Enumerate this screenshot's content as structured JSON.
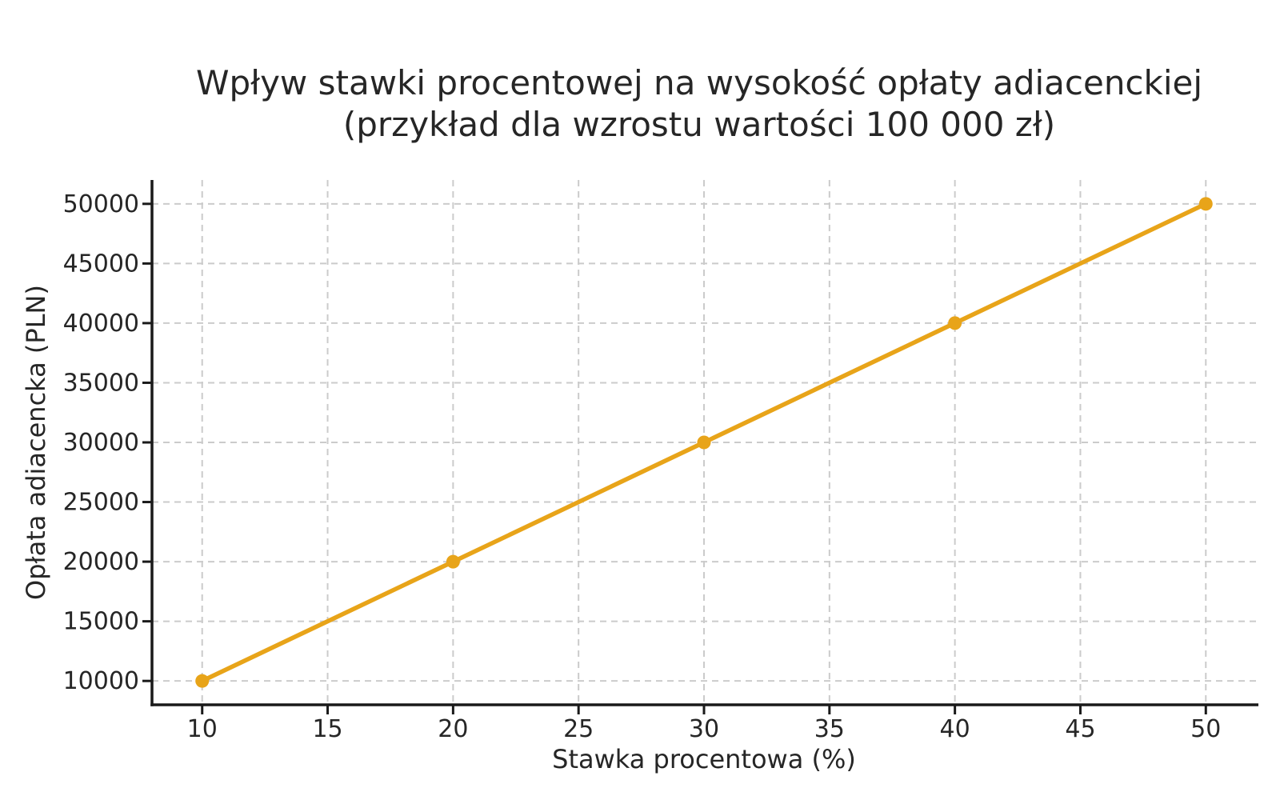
{
  "page": {
    "background": "#FFFFFF"
  },
  "chart_data": {
    "type": "line",
    "title": "Wpływ stawki procentowej na wysokość opłaty adiacenckiej",
    "subtitle": "(przykład dla wzrostu wartości 100 000 zł)",
    "xlabel": "Stawka procentowa (%)",
    "ylabel": "Opłata adiacencka (PLN)",
    "x": [
      10,
      20,
      30,
      40,
      50
    ],
    "y": [
      10000,
      20000,
      30000,
      40000,
      50000
    ],
    "xticks": [
      10,
      15,
      20,
      25,
      30,
      35,
      40,
      45,
      50
    ],
    "yticks": [
      10000,
      15000,
      20000,
      25000,
      30000,
      35000,
      40000,
      45000,
      50000
    ],
    "xlim": [
      8,
      52
    ],
    "ylim": [
      8000,
      52000
    ],
    "grid": true,
    "grid_style": "dashed",
    "legend_position": "none",
    "marker": "circle",
    "colors": {
      "line": "#E8A419",
      "marker": "#E8A419",
      "grid": "#CBCBCB",
      "axis": "#1A1A1A",
      "text": "#262626",
      "background": "#FFFFFF"
    }
  }
}
